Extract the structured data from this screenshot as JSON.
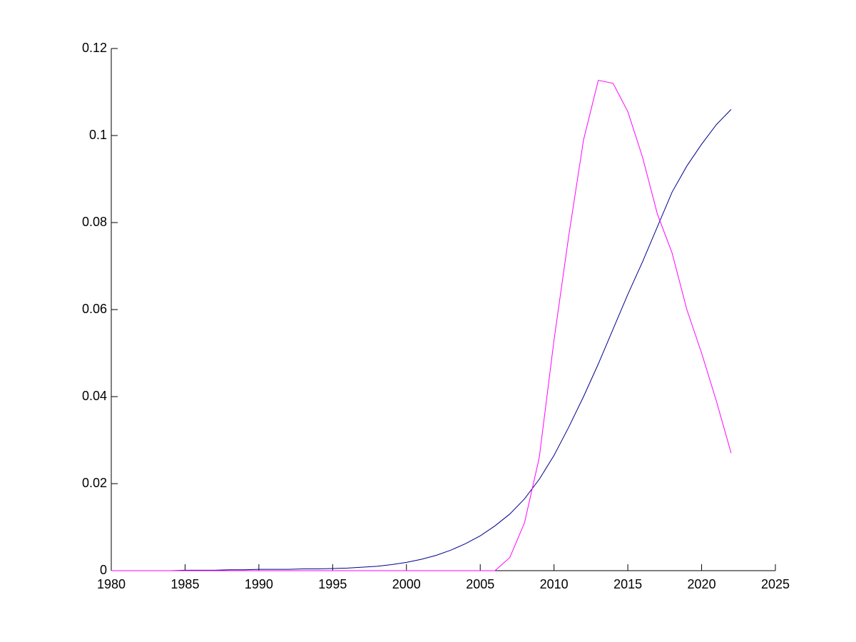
{
  "chart_data": {
    "type": "line",
    "x": [
      1980,
      1981,
      1982,
      1983,
      1984,
      1985,
      1986,
      1987,
      1988,
      1989,
      1990,
      1991,
      1992,
      1993,
      1994,
      1995,
      1996,
      1997,
      1998,
      1999,
      2000,
      2001,
      2002,
      2003,
      2004,
      2005,
      2006,
      2007,
      2008,
      2009,
      2010,
      2011,
      2012,
      2013,
      2014,
      2015,
      2016,
      2017,
      2018,
      2019,
      2020,
      2021,
      2022
    ],
    "series": [
      {
        "color": "#00008b",
        "values": [
          0,
          0,
          0,
          0,
          0,
          0.0001,
          0.0001,
          0.0001,
          0.0002,
          0.0002,
          0.0003,
          0.0003,
          0.0003,
          0.0004,
          0.0004,
          0.0005,
          0.0006,
          0.0008,
          0.001,
          0.0014,
          0.0019,
          0.0026,
          0.0035,
          0.0047,
          0.0062,
          0.008,
          0.0103,
          0.013,
          0.0165,
          0.021,
          0.0265,
          0.033,
          0.04,
          0.0475,
          0.0555,
          0.0635,
          0.071,
          0.079,
          0.087,
          0.093,
          0.098,
          0.1025,
          0.106
        ]
      },
      {
        "color": "#ff00ff",
        "values": [
          0,
          0,
          0,
          0,
          0,
          0,
          0,
          0,
          0,
          0,
          0,
          0,
          0,
          0,
          0,
          0,
          0,
          0,
          0,
          0,
          0,
          0,
          0,
          0,
          0,
          0,
          0,
          0.003,
          0.011,
          0.026,
          0.053,
          0.077,
          0.099,
          0.1127,
          0.112,
          0.1055,
          0.095,
          0.082,
          0.073,
          0.06,
          0.05,
          0.039,
          0.027
        ]
      }
    ],
    "xlim": [
      1980,
      2025
    ],
    "xticks": [
      1980,
      1985,
      1990,
      1995,
      2000,
      2005,
      2010,
      2015,
      2020,
      2025
    ],
    "ylim": [
      0,
      0.12
    ],
    "yticks": [
      0,
      0.02,
      0.04,
      0.06,
      0.08,
      0.1,
      0.12
    ]
  }
}
